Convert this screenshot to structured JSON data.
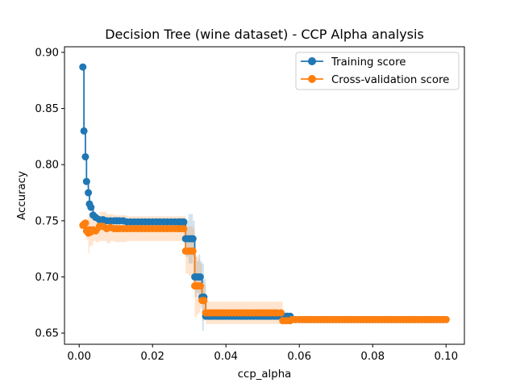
{
  "chart_data": {
    "type": "line",
    "title": "Decision Tree (wine dataset) - CCP Alpha analysis",
    "xlabel": "ccp_alpha",
    "ylabel": "Accuracy",
    "xlim": [
      -0.004,
      0.105
    ],
    "ylim": [
      0.64,
      0.905
    ],
    "xticks": [
      0.0,
      0.02,
      0.04,
      0.06,
      0.08,
      0.1
    ],
    "xtick_labels": [
      "0.00",
      "0.02",
      "0.04",
      "0.06",
      "0.08",
      "0.10"
    ],
    "yticks": [
      0.65,
      0.7,
      0.75,
      0.8,
      0.85,
      0.9
    ],
    "ytick_labels": [
      "0.65",
      "0.70",
      "0.75",
      "0.80",
      "0.85",
      "0.90"
    ],
    "legend_position": "top-right",
    "grid": false,
    "series": [
      {
        "name": "Training score",
        "color": "#1f77b4",
        "x": [
          0.001,
          0.0013,
          0.0017,
          0.002,
          0.0025,
          0.0028,
          0.0032,
          0.0038,
          0.0045,
          0.0055,
          0.0065,
          0.0075,
          0.0085,
          0.0095,
          0.011,
          0.013,
          0.015,
          0.017,
          0.019,
          0.021,
          0.023,
          0.025,
          0.027,
          0.0285,
          0.029,
          0.0298,
          0.0305,
          0.031,
          0.0315,
          0.032,
          0.0325,
          0.033,
          0.0335,
          0.034,
          0.0345,
          0.036,
          0.04,
          0.045,
          0.05,
          0.054,
          0.056,
          0.0575,
          0.058,
          0.06,
          0.065,
          0.07,
          0.075,
          0.08,
          0.085,
          0.09,
          0.095,
          0.1
        ],
        "y": [
          0.887,
          0.83,
          0.807,
          0.785,
          0.775,
          0.765,
          0.762,
          0.755,
          0.753,
          0.751,
          0.751,
          0.75,
          0.75,
          0.75,
          0.75,
          0.749,
          0.749,
          0.749,
          0.749,
          0.749,
          0.749,
          0.749,
          0.749,
          0.749,
          0.734,
          0.734,
          0.734,
          0.734,
          0.7,
          0.7,
          0.7,
          0.7,
          0.682,
          0.682,
          0.665,
          0.665,
          0.665,
          0.665,
          0.665,
          0.665,
          0.665,
          0.665,
          0.662,
          0.662,
          0.662,
          0.662,
          0.662,
          0.662,
          0.662,
          0.662,
          0.662,
          0.662
        ],
        "band_half_width": [
          0.0,
          0.0,
          0.0,
          0.0,
          0.0,
          0.0,
          0.0,
          0.0,
          0.0,
          0.0,
          0.0,
          0.0,
          0.0,
          0.0,
          0.0,
          0.0,
          0.0,
          0.0,
          0.0,
          0.0,
          0.0,
          0.0,
          0.0,
          0.0,
          0.016,
          0.022,
          0.022,
          0.016,
          0.018,
          0.014,
          0.02,
          0.014,
          0.03,
          0.016,
          0.0,
          0.0,
          0.0,
          0.0,
          0.0,
          0.0,
          0.0,
          0.0,
          0.0,
          0.0,
          0.0,
          0.0,
          0.0,
          0.0,
          0.0,
          0.0,
          0.0,
          0.0
        ]
      },
      {
        "name": "Cross-validation score",
        "color": "#ff7f0e",
        "x": [
          0.001,
          0.0013,
          0.0017,
          0.002,
          0.0025,
          0.0028,
          0.0032,
          0.0038,
          0.0045,
          0.0055,
          0.0065,
          0.0075,
          0.0085,
          0.0095,
          0.011,
          0.013,
          0.015,
          0.017,
          0.019,
          0.021,
          0.023,
          0.025,
          0.027,
          0.0285,
          0.029,
          0.0298,
          0.0305,
          0.031,
          0.0315,
          0.032,
          0.0325,
          0.033,
          0.0335,
          0.034,
          0.0345,
          0.036,
          0.04,
          0.045,
          0.05,
          0.054,
          0.055,
          0.0555,
          0.0575,
          0.058,
          0.06,
          0.065,
          0.07,
          0.075,
          0.08,
          0.085,
          0.09,
          0.095,
          0.1
        ],
        "y": [
          0.746,
          0.747,
          0.748,
          0.741,
          0.739,
          0.742,
          0.74,
          0.742,
          0.741,
          0.745,
          0.745,
          0.743,
          0.744,
          0.743,
          0.743,
          0.743,
          0.743,
          0.743,
          0.743,
          0.743,
          0.743,
          0.743,
          0.743,
          0.743,
          0.723,
          0.723,
          0.723,
          0.723,
          0.692,
          0.692,
          0.692,
          0.692,
          0.679,
          0.679,
          0.668,
          0.668,
          0.668,
          0.668,
          0.668,
          0.668,
          0.668,
          0.661,
          0.661,
          0.662,
          0.662,
          0.662,
          0.662,
          0.662,
          0.662,
          0.662,
          0.662,
          0.662,
          0.662
        ],
        "band_half_width": [
          0.0,
          0.0,
          0.0,
          0.008,
          0.018,
          0.015,
          0.012,
          0.01,
          0.01,
          0.013,
          0.013,
          0.013,
          0.012,
          0.012,
          0.012,
          0.011,
          0.011,
          0.011,
          0.011,
          0.011,
          0.011,
          0.011,
          0.011,
          0.011,
          0.02,
          0.022,
          0.022,
          0.02,
          0.028,
          0.026,
          0.024,
          0.02,
          0.018,
          0.014,
          0.01,
          0.01,
          0.01,
          0.01,
          0.01,
          0.01,
          0.01,
          0.003,
          0.002,
          0.0,
          0.0,
          0.0,
          0.0,
          0.0,
          0.0,
          0.0,
          0.0,
          0.0,
          0.0
        ]
      }
    ]
  }
}
